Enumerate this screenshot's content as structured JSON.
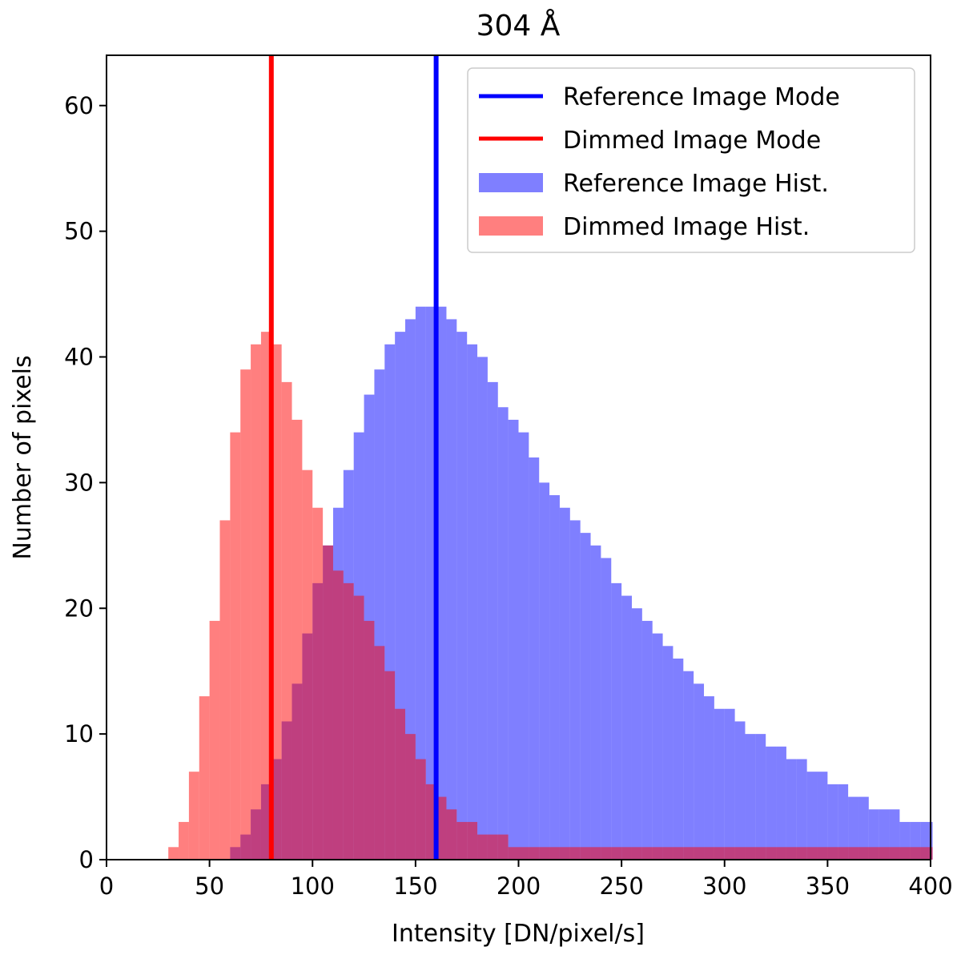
{
  "chart_data": {
    "type": "bar",
    "title": "304 Å",
    "xlabel": "Intensity [DN/pixel/s]",
    "ylabel": "Number of pixels",
    "xlim": [
      0,
      400
    ],
    "ylim": [
      0,
      64
    ],
    "xticks": [
      0,
      50,
      100,
      150,
      200,
      250,
      300,
      350,
      400
    ],
    "yticks": [
      0,
      10,
      20,
      30,
      40,
      50,
      60
    ],
    "legend_position": "top-right",
    "grid": false,
    "bin_width": 1,
    "lines": [
      {
        "name": "Reference Image Mode",
        "x": 160,
        "color": "#0000ff"
      },
      {
        "name": "Dimmed Image Mode",
        "x": 80,
        "color": "#ff0000"
      }
    ],
    "histograms": [
      {
        "name": "Reference Image Hist.",
        "color": "#0000ff",
        "opacity": 0.5,
        "x": [
          60,
          65,
          70,
          75,
          80,
          85,
          90,
          95,
          100,
          105,
          110,
          115,
          120,
          125,
          130,
          135,
          140,
          145,
          150,
          155,
          160,
          165,
          170,
          175,
          180,
          185,
          190,
          195,
          200,
          205,
          210,
          215,
          220,
          225,
          230,
          235,
          240,
          245,
          250,
          255,
          260,
          265,
          270,
          275,
          280,
          285,
          290,
          295,
          300,
          305,
          310,
          315,
          320,
          325,
          330,
          335,
          340,
          345,
          350,
          355,
          360,
          365,
          370,
          375,
          380,
          385,
          390,
          395,
          400
        ],
        "values": [
          1,
          2,
          4,
          6,
          8,
          11,
          14,
          18,
          22,
          25,
          28,
          31,
          34,
          37,
          39,
          41,
          42,
          43,
          44,
          44,
          44,
          43,
          42,
          41,
          40,
          38,
          36,
          35,
          34,
          32,
          30,
          29,
          28,
          27,
          26,
          25,
          24,
          22,
          21,
          20,
          19,
          18,
          17,
          16,
          15,
          14,
          13,
          12,
          12,
          11,
          10,
          10,
          9,
          9,
          8,
          8,
          7,
          7,
          6,
          6,
          5,
          5,
          4,
          4,
          4,
          3,
          3,
          3,
          3
        ]
      },
      {
        "name": "Dimmed Image Hist.",
        "color": "#ff0000",
        "opacity": 0.5,
        "x": [
          30,
          35,
          40,
          45,
          50,
          55,
          60,
          65,
          70,
          75,
          80,
          85,
          90,
          95,
          100,
          105,
          110,
          115,
          120,
          125,
          130,
          135,
          140,
          145,
          150,
          155,
          160,
          165,
          170,
          175,
          180,
          185,
          190,
          195,
          200,
          210,
          220,
          230,
          240,
          250,
          260,
          270,
          280,
          290,
          300,
          320,
          340,
          360,
          380,
          400
        ],
        "values": [
          1,
          3,
          7,
          13,
          19,
          27,
          34,
          39,
          41,
          42,
          41,
          38,
          35,
          31,
          28,
          25,
          23,
          22,
          21,
          19,
          17,
          15,
          12,
          10,
          8,
          6,
          5,
          4,
          3,
          3,
          2,
          2,
          2,
          1,
          1,
          1,
          1,
          1,
          1,
          1,
          1,
          1,
          1,
          1,
          1,
          1,
          1,
          1,
          1,
          1
        ]
      }
    ]
  }
}
